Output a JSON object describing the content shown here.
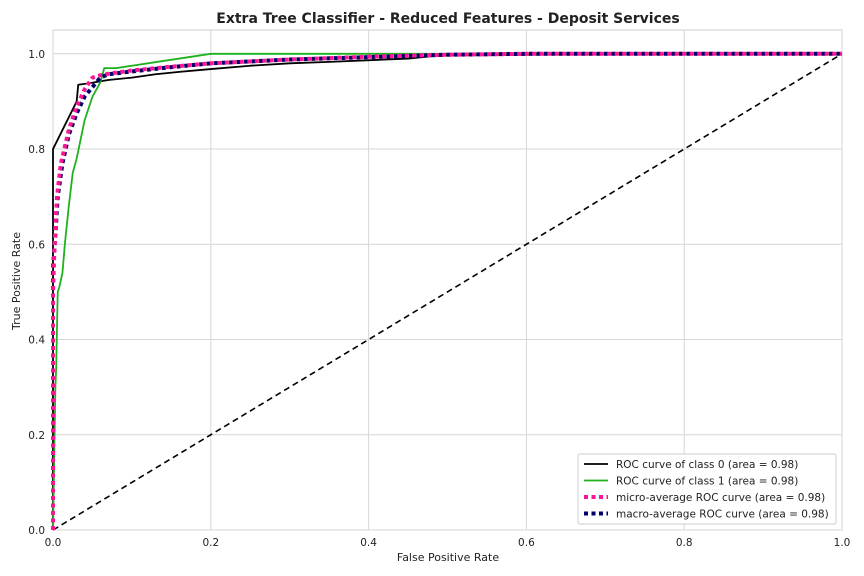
{
  "chart_data": {
    "type": "line",
    "title": "Extra Tree Classifier - Reduced Features - Deposit Services",
    "xlabel": "False Positive Rate",
    "ylabel": "True Positive Rate",
    "xlim": [
      0.0,
      1.0
    ],
    "ylim": [
      0.0,
      1.05
    ],
    "xticks": [
      0.0,
      0.2,
      0.4,
      0.6,
      0.8,
      1.0
    ],
    "yticks": [
      0.0,
      0.2,
      0.4,
      0.6,
      0.8,
      1.0
    ],
    "xtick_labels": [
      "0.0",
      "0.2",
      "0.4",
      "0.6",
      "0.8",
      "1.0"
    ],
    "ytick_labels": [
      "0.0",
      "0.2",
      "0.4",
      "0.6",
      "0.8",
      "1.0"
    ],
    "grid": true,
    "legend_position": "lower-right",
    "series": [
      {
        "name": "ROC curve of class 0 (area = 0.98)",
        "color": "#000000",
        "style": "solid",
        "x": [
          0.0,
          0.0,
          0.012,
          0.03,
          0.032,
          0.045,
          0.07,
          0.1,
          0.13,
          0.16,
          0.2,
          0.25,
          0.3,
          0.35,
          0.45,
          0.48,
          0.5,
          0.6,
          0.7,
          0.8,
          0.9,
          1.0
        ],
        "y": [
          0.0,
          0.8,
          0.84,
          0.9,
          0.935,
          0.938,
          0.945,
          0.95,
          0.957,
          0.962,
          0.968,
          0.975,
          0.98,
          0.983,
          0.99,
          0.995,
          0.997,
          0.998,
          0.999,
          1.0,
          1.0,
          1.0
        ]
      },
      {
        "name": "ROC curve of class 1 (area = 0.98)",
        "color": "#1db21d",
        "style": "solid",
        "x": [
          0.0,
          0.003,
          0.004,
          0.005,
          0.006,
          0.008,
          0.012,
          0.015,
          0.02,
          0.025,
          0.03,
          0.04,
          0.05,
          0.06,
          0.065,
          0.07,
          0.08,
          0.1,
          0.14,
          0.2,
          0.3,
          0.5,
          0.7,
          1.0
        ],
        "y": [
          0.0,
          0.3,
          0.34,
          0.42,
          0.5,
          0.51,
          0.54,
          0.6,
          0.68,
          0.75,
          0.78,
          0.86,
          0.91,
          0.94,
          0.97,
          0.97,
          0.97,
          0.975,
          0.985,
          1.0,
          1.0,
          1.0,
          1.0,
          1.0
        ]
      },
      {
        "name": "micro-average ROC curve (area = 0.98)",
        "color": "#ff1493",
        "style": "dotted",
        "x": [
          0.0,
          0.0,
          0.002,
          0.005,
          0.01,
          0.02,
          0.03,
          0.04,
          0.05,
          0.06,
          0.07,
          0.1,
          0.15,
          0.2,
          0.3,
          0.4,
          0.5,
          0.6,
          0.8,
          1.0
        ],
        "y": [
          0.0,
          0.5,
          0.6,
          0.7,
          0.77,
          0.84,
          0.89,
          0.925,
          0.95,
          0.955,
          0.958,
          0.965,
          0.973,
          0.98,
          0.988,
          0.994,
          0.998,
          1.0,
          1.0,
          1.0
        ]
      },
      {
        "name": "macro-average ROC curve (area = 0.98)",
        "color": "#00006a",
        "style": "dotted",
        "x": [
          0.0,
          0.0,
          0.003,
          0.006,
          0.012,
          0.02,
          0.03,
          0.04,
          0.05,
          0.06,
          0.07,
          0.1,
          0.15,
          0.2,
          0.3,
          0.4,
          0.5,
          0.6,
          0.8,
          1.0
        ],
        "y": [
          0.0,
          0.55,
          0.62,
          0.7,
          0.77,
          0.83,
          0.875,
          0.91,
          0.93,
          0.95,
          0.957,
          0.963,
          0.972,
          0.98,
          0.988,
          0.993,
          0.998,
          1.0,
          1.0,
          1.0
        ]
      },
      {
        "name": "",
        "color": "#000000",
        "style": "dashed",
        "x": [
          0.0,
          1.0
        ],
        "y": [
          0.0,
          1.0
        ]
      }
    ]
  }
}
